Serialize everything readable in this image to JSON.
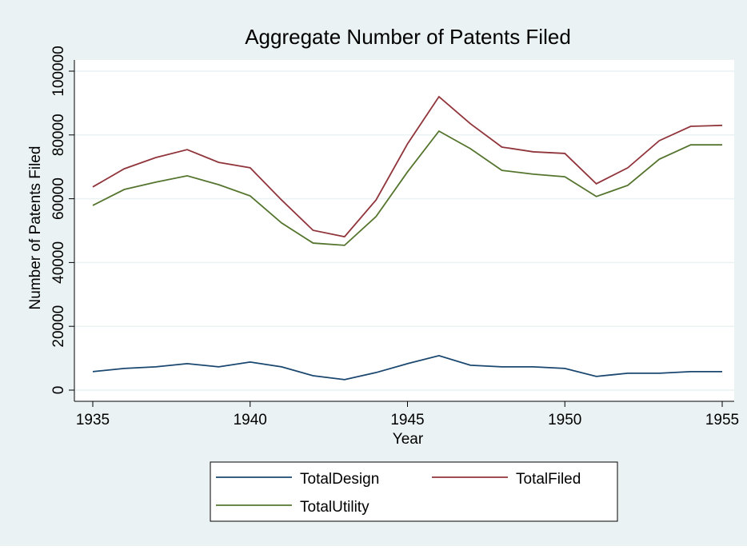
{
  "chart_data": {
    "type": "line",
    "title": "Aggregate Number of Patents Filed",
    "x_label": "Year",
    "y_label": "Number of Patents Filed",
    "x": [
      1935,
      1936,
      1937,
      1938,
      1939,
      1940,
      1941,
      1942,
      1943,
      1944,
      1945,
      1946,
      1947,
      1948,
      1949,
      1950,
      1951,
      1952,
      1953,
      1954,
      1955
    ],
    "series": [
      {
        "name": "TotalDesign",
        "color": "#1a476f",
        "values": [
          5800,
          6800,
          7300,
          8300,
          7300,
          8800,
          7300,
          4500,
          3300,
          5500,
          8300,
          10800,
          7800,
          7300,
          7300,
          6800,
          4300,
          5300,
          5300,
          5800,
          5800
        ]
      },
      {
        "name": "TotalFiled",
        "color": "#90353b",
        "values": [
          63700,
          69400,
          72900,
          75400,
          71400,
          69700,
          59600,
          50100,
          48100,
          59600,
          77200,
          92000,
          83500,
          76200,
          74700,
          74200,
          64700,
          69700,
          78200,
          82700,
          83000
        ]
      },
      {
        "name": "TotalUtility",
        "color": "#55752f",
        "values": [
          57900,
          62900,
          65200,
          67200,
          64400,
          60900,
          52400,
          46100,
          45400,
          54400,
          68400,
          81200,
          75700,
          68900,
          67700,
          66900,
          60700,
          64200,
          72400,
          76900,
          76900
        ]
      }
    ],
    "xlim": [
      1935,
      1955
    ],
    "xticks": [
      1935,
      1940,
      1945,
      1950,
      1955
    ],
    "ylim": [
      0,
      100000
    ],
    "yticks": [
      0,
      20000,
      40000,
      60000,
      80000,
      100000
    ],
    "grid": true,
    "legend": "bottom"
  }
}
